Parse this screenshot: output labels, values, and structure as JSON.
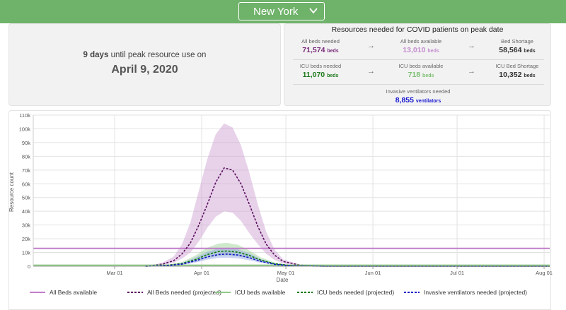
{
  "header": {
    "state_select_value": "New York"
  },
  "summary": {
    "days_count": "9 days",
    "days_text": "until peak resource use on",
    "peak_date": "April 9, 2020"
  },
  "resources": {
    "title": "Resources needed for COVID patients on peak date",
    "all_beds_needed_label": "All beds needed",
    "all_beds_needed_value": "71,574",
    "all_beds_available_label": "All beds available",
    "all_beds_available_value": "13,010",
    "bed_shortage_label": "Bed Shortage",
    "bed_shortage_value": "58,564",
    "icu_beds_needed_label": "ICU beds needed",
    "icu_beds_needed_value": "11,070",
    "icu_beds_available_label": "ICU beds available",
    "icu_beds_available_value": "718",
    "icu_bed_shortage_label": "ICU Bed Shortage",
    "icu_bed_shortage_value": "10,352",
    "ventilators_label": "Invasive ventilators needed",
    "ventilators_value": "8,855",
    "beds_unit": "beds",
    "ventilators_unit": "ventilators"
  },
  "colors": {
    "all_beds_available": "#c07ec8",
    "all_beds_needed": "#5c0f5e",
    "icu_beds_available": "#8fcb88",
    "icu_beds_needed": "#0e7a0e",
    "ventilators_needed": "#1313c8"
  },
  "chart_data": {
    "type": "line",
    "xlabel": "Date",
    "ylabel": "Resource count",
    "x_ticks": [
      "Mar 01",
      "Apr 01",
      "May 01",
      "Jun 01",
      "Jul 01",
      "Aug 01"
    ],
    "y_ticks": [
      "0",
      "10k",
      "20k",
      "30k",
      "40k",
      "50k",
      "60k",
      "70k",
      "80k",
      "90k",
      "100k",
      "110k"
    ],
    "ylim": [
      0,
      110000
    ],
    "x_range": [
      "2020-02-01",
      "2020-08-03"
    ],
    "grid": true,
    "legend_position": "bottom",
    "series": [
      {
        "name": "All Beds available",
        "style": "solid",
        "color": "#c07ec8",
        "x": [
          "2020-02-01",
          "2020-08-03"
        ],
        "y": [
          13010,
          13010
        ]
      },
      {
        "name": "All Beds needed (projected)",
        "style": "dashed",
        "color": "#5c0f5e",
        "x": [
          "2020-03-12",
          "2020-03-18",
          "2020-03-22",
          "2020-03-25",
          "2020-03-28",
          "2020-03-31",
          "2020-04-03",
          "2020-04-06",
          "2020-04-09",
          "2020-04-12",
          "2020-04-15",
          "2020-04-18",
          "2020-04-21",
          "2020-04-24",
          "2020-04-27",
          "2020-04-30",
          "2020-05-06",
          "2020-05-15",
          "2020-08-03"
        ],
        "y": [
          0,
          1500,
          4000,
          9000,
          17000,
          30000,
          45000,
          61000,
          71574,
          70000,
          60000,
          45000,
          29000,
          16000,
          8000,
          3500,
          800,
          0,
          0
        ],
        "band_upper": [
          0,
          2500,
          7000,
          16000,
          32000,
          55000,
          78000,
          96000,
          104000,
          101000,
          88000,
          68000,
          45000,
          25000,
          12000,
          5000,
          1200,
          0,
          0
        ],
        "band_lower": [
          0,
          800,
          2500,
          5500,
          10000,
          18000,
          28000,
          36000,
          40000,
          39000,
          33000,
          24000,
          16000,
          9000,
          4500,
          2000,
          500,
          0,
          0
        ]
      },
      {
        "name": "ICU beds available",
        "style": "solid",
        "color": "#8fcb88",
        "x": [
          "2020-02-01",
          "2020-08-03"
        ],
        "y": [
          718,
          718
        ]
      },
      {
        "name": "ICU beds needed (projected)",
        "style": "dashed",
        "color": "#0e7a0e",
        "x": [
          "2020-03-12",
          "2020-03-20",
          "2020-03-25",
          "2020-03-30",
          "2020-04-03",
          "2020-04-07",
          "2020-04-10",
          "2020-04-14",
          "2020-04-18",
          "2020-04-22",
          "2020-04-27",
          "2020-05-03",
          "2020-05-15",
          "2020-08-03"
        ],
        "y": [
          0,
          700,
          2000,
          5000,
          8500,
          10700,
          11070,
          10200,
          7800,
          4500,
          1800,
          400,
          0,
          0
        ],
        "band_upper": [
          0,
          1000,
          3000,
          8000,
          13500,
          16500,
          17000,
          15500,
          11500,
          6500,
          2600,
          600,
          0,
          0
        ],
        "band_lower": [
          0,
          500,
          1400,
          3500,
          6000,
          7500,
          7800,
          7200,
          5500,
          3200,
          1300,
          300,
          0,
          0
        ]
      },
      {
        "name": "Invasive ventilators needed (projected)",
        "style": "dashed",
        "color": "#1313c8",
        "x": [
          "2020-03-12",
          "2020-03-20",
          "2020-03-25",
          "2020-03-30",
          "2020-04-03",
          "2020-04-07",
          "2020-04-10",
          "2020-04-14",
          "2020-04-18",
          "2020-04-22",
          "2020-04-27",
          "2020-05-03",
          "2020-05-15",
          "2020-08-03"
        ],
        "y": [
          0,
          500,
          1500,
          4000,
          6800,
          8500,
          8855,
          8100,
          6200,
          3600,
          1400,
          300,
          0,
          0
        ],
        "band_upper": [
          0,
          800,
          2400,
          6500,
          10500,
          13000,
          13500,
          12300,
          9300,
          5300,
          2100,
          500,
          0,
          0
        ],
        "band_lower": [
          0,
          300,
          1000,
          2800,
          4800,
          6000,
          6200,
          5700,
          4300,
          2500,
          1000,
          200,
          0,
          0
        ]
      }
    ]
  }
}
